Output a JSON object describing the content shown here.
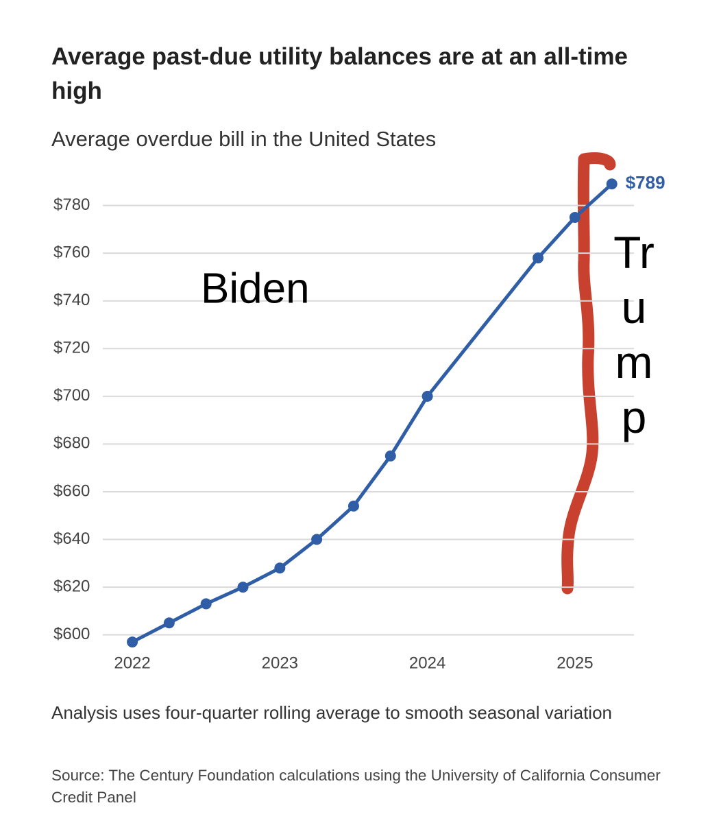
{
  "chart_data": {
    "type": "line",
    "title": "Average past-due utility balances are at an all-time high",
    "subtitle": "Average overdue bill in the United States",
    "x": [
      2022,
      2022.25,
      2022.5,
      2022.75,
      2023,
      2023.25,
      2023.5,
      2023.75,
      2024,
      2024.75,
      2025,
      2025.25
    ],
    "xlim": [
      2021.8,
      2025.4
    ],
    "xticks": [
      2022,
      2023,
      2024,
      2025
    ],
    "ylim": [
      593,
      800
    ],
    "yticks": [
      {
        "value": 600,
        "label": "$600"
      },
      {
        "value": 620,
        "label": "$620"
      },
      {
        "value": 640,
        "label": "$640"
      },
      {
        "value": 660,
        "label": "$660"
      },
      {
        "value": 680,
        "label": "$680"
      },
      {
        "value": 700,
        "label": "$700"
      },
      {
        "value": 720,
        "label": "$720"
      },
      {
        "value": 740,
        "label": "$740"
      },
      {
        "value": 760,
        "label": "$760"
      },
      {
        "value": 780,
        "label": "$780"
      }
    ],
    "grid": true,
    "series": [
      {
        "color": "#2f5ea6",
        "values": [
          597,
          605,
          613,
          620,
          628,
          640,
          654,
          675,
          700,
          758,
          775,
          789
        ],
        "value_labels": [
          null,
          null,
          null,
          null,
          null,
          null,
          null,
          null,
          null,
          null,
          null,
          "$789"
        ]
      }
    ],
    "annotations": [
      "Biden",
      "Trump"
    ],
    "note": "Analysis uses four-quarter rolling average to smooth seasonal variation",
    "source": "Source: The Century Foundation calculations using the University of California Consumer Credit Panel"
  }
}
